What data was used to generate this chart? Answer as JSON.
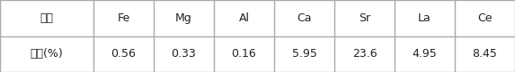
{
  "headers": [
    "성분",
    "Fe",
    "Mg",
    "Al",
    "Ca",
    "Sr",
    "La",
    "Ce"
  ],
  "row_label": "함량(%)",
  "values": [
    "0.56",
    "0.33",
    "0.16",
    "5.95",
    "23.6",
    "4.95",
    "8.45"
  ],
  "background_color": "#ffffff",
  "border_color": "#aaaaaa",
  "text_color": "#222222",
  "font_size": 9.0,
  "col_widths": [
    1.55,
    1.0,
    1.0,
    1.0,
    1.0,
    1.0,
    1.0,
    1.0
  ]
}
